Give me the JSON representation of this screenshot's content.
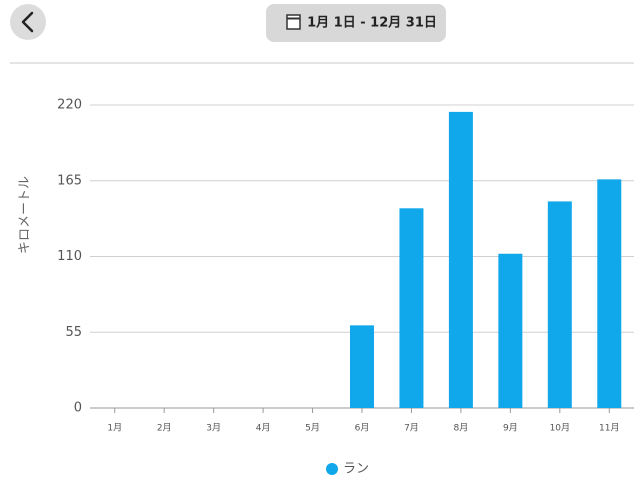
{
  "header": {
    "date_range": "1月 1日 - 12月 31日"
  },
  "chart_data": {
    "type": "bar",
    "y_label": "キロメートル",
    "categories": [
      "1月",
      "2月",
      "3月",
      "4月",
      "5月",
      "6月",
      "7月",
      "8月",
      "9月",
      "10月",
      "11月"
    ],
    "series": [
      {
        "name": "ラン",
        "color": "#10a8ea",
        "values": [
          0,
          0,
          0,
          0,
          0,
          60,
          145,
          215,
          112,
          150,
          166
        ]
      }
    ],
    "ylim": [
      0,
      220
    ],
    "yticks": [
      0,
      55,
      110,
      165,
      220
    ],
    "grid": true
  }
}
